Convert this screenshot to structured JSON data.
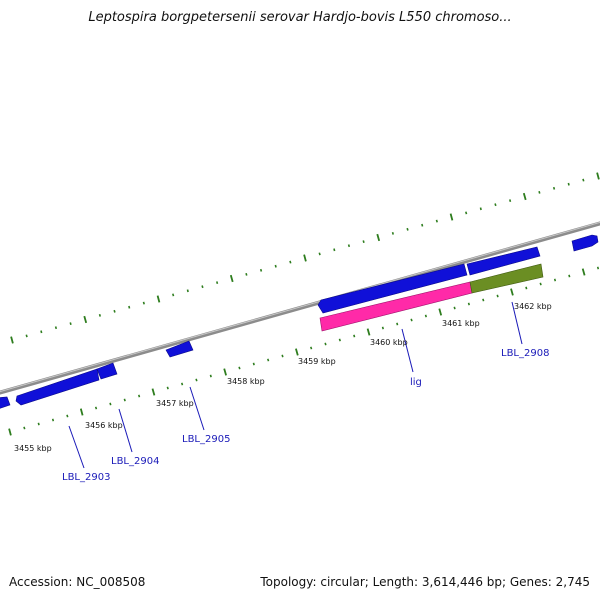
{
  "title": "Leptospira borgpetersenii serovar Hardjo-bovis L550 chromoso...",
  "footer": {
    "accession": "Accession: NC_008508",
    "summary": "Topology: circular; Length: 3,614,446 bp; Genes: 2,745"
  },
  "colors": {
    "backbone": "#8c8c8c",
    "tick": "#2e7d1e",
    "forward_gene": "#1010d8",
    "reverse_gene": "#1010d8",
    "highlight_pink": "#ff2aa8",
    "highlight_olive": "#6b8e23",
    "label": "#1a1ab8"
  },
  "scale": {
    "unit": "kbp",
    "ticks": [
      {
        "kbp": 3455,
        "label": "3455 kbp"
      },
      {
        "kbp": 3456,
        "label": "3456 kbp"
      },
      {
        "kbp": 3457,
        "label": "3457 kbp"
      },
      {
        "kbp": 3458,
        "label": "3458 kbp"
      },
      {
        "kbp": 3459,
        "label": "3459 kbp"
      },
      {
        "kbp": 3460,
        "label": "3460 kbp"
      },
      {
        "kbp": 3461,
        "label": "3461 kbp"
      },
      {
        "kbp": 3462,
        "label": "3462 kbp"
      }
    ]
  },
  "genes": [
    {
      "label": "LBL_2903"
    },
    {
      "label": "LBL_2904"
    },
    {
      "label": "LBL_2905"
    },
    {
      "label": "lig"
    },
    {
      "label": "LBL_2908"
    }
  ]
}
